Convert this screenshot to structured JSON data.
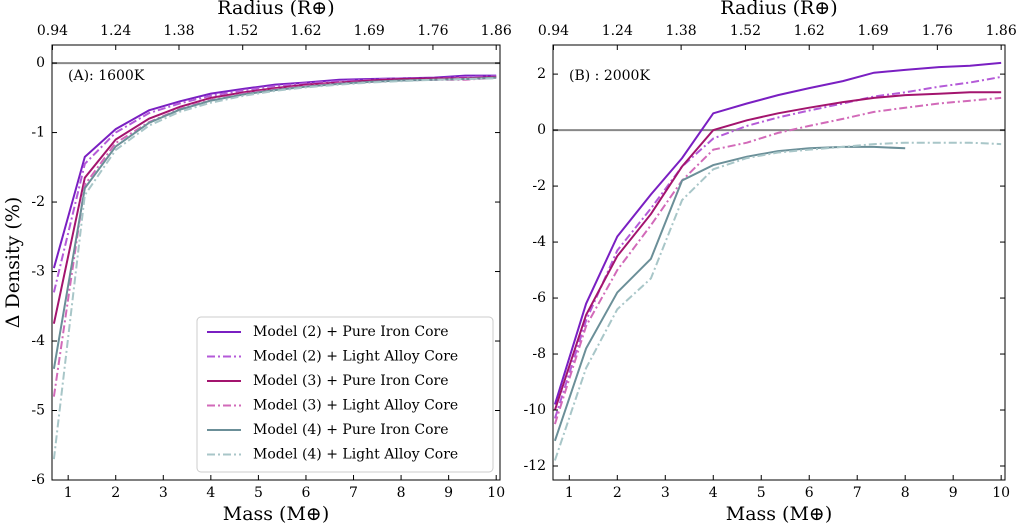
{
  "chart_data": [
    {
      "type": "line",
      "annotation": "(A): 1600K",
      "xlabel": "Mass (M⊕)",
      "ylabel": "Δ Density (%)",
      "x2label": "Radius (R⊕)",
      "xlim": [
        0.66,
        10.08
      ],
      "ylim": [
        -6,
        0.26
      ],
      "xticks": [
        1,
        2,
        3,
        4,
        5,
        6,
        7,
        8,
        9,
        10
      ],
      "yticks": [
        0,
        -1,
        -2,
        -3,
        -4,
        -5,
        -6
      ],
      "x2ticks": [
        {
          "value": 0.67,
          "label": "0.94"
        },
        {
          "value": 2,
          "label": "1.24"
        },
        {
          "value": 3.33,
          "label": "1.38"
        },
        {
          "value": 4.67,
          "label": "1.52"
        },
        {
          "value": 6,
          "label": "1.62"
        },
        {
          "value": 7.33,
          "label": "1.69"
        },
        {
          "value": 8.67,
          "label": "1.76"
        },
        {
          "value": 10,
          "label": "1.86"
        }
      ],
      "hline": 0,
      "hline_color": "#888888",
      "legend": "lower right",
      "x": [
        0.7,
        1.35,
        2,
        2.7,
        3.35,
        4,
        4.7,
        5.35,
        6,
        6.7,
        7.35,
        8,
        8.7,
        9.35,
        10
      ],
      "series": [
        {
          "name": "Model (2) + Pure Iron Core",
          "color": "#7a1fc2",
          "dash": "solid",
          "values": [
            -2.95,
            -1.35,
            -0.95,
            -0.68,
            -0.55,
            -0.44,
            -0.37,
            -0.31,
            -0.28,
            -0.24,
            -0.23,
            -0.22,
            -0.21,
            -0.18,
            -0.18
          ]
        },
        {
          "name": "Model (2) + Light Alloy Core",
          "color": "#b45ad8",
          "dash": "dashdot",
          "values": [
            -3.3,
            -1.45,
            -1.0,
            -0.72,
            -0.58,
            -0.47,
            -0.39,
            -0.33,
            -0.29,
            -0.26,
            -0.24,
            -0.22,
            -0.22,
            -0.2,
            -0.19
          ]
        },
        {
          "name": "Model (3) + Pure Iron Core",
          "color": "#a3146e",
          "dash": "solid",
          "values": [
            -3.75,
            -1.65,
            -1.1,
            -0.8,
            -0.63,
            -0.5,
            -0.42,
            -0.36,
            -0.31,
            -0.28,
            -0.25,
            -0.23,
            -0.22,
            -0.22,
            -0.2
          ]
        },
        {
          "name": "Model (3) + Light Alloy Core",
          "color": "#d26ab9",
          "dash": "dashdot",
          "values": [
            -4.8,
            -1.75,
            -1.15,
            -0.85,
            -0.66,
            -0.53,
            -0.44,
            -0.38,
            -0.33,
            -0.29,
            -0.27,
            -0.25,
            -0.24,
            -0.24,
            -0.21
          ]
        },
        {
          "name": "Model (4) + Pure Iron Core",
          "color": "#6b8f98",
          "dash": "solid",
          "values": [
            -4.4,
            -1.8,
            -1.2,
            -0.86,
            -0.67,
            -0.54,
            -0.45,
            -0.39,
            -0.34,
            -0.3,
            -0.27,
            -0.25,
            -0.24,
            -0.23,
            -0.21
          ]
        },
        {
          "name": "Model (4) + Light Alloy Core",
          "color": "#a8c6c8",
          "dash": "dashdot",
          "values": [
            -5.7,
            -1.9,
            -1.25,
            -0.9,
            -0.7,
            -0.57,
            -0.47,
            -0.4,
            -0.35,
            -0.31,
            -0.28,
            -0.26,
            -0.24,
            -0.23,
            -0.22
          ]
        }
      ]
    },
    {
      "type": "line",
      "annotation": "(B) : 2000K",
      "xlabel": "Mass (M⊕)",
      "x2label": "Radius (R⊕)",
      "xlim": [
        0.66,
        10.08
      ],
      "ylim": [
        -12.5,
        3.04
      ],
      "xticks": [
        1,
        2,
        3,
        4,
        5,
        6,
        7,
        8,
        9,
        10
      ],
      "yticks": [
        2,
        0,
        -2,
        -4,
        -6,
        -8,
        -10,
        -12
      ],
      "x2ticks": [
        {
          "value": 0.67,
          "label": "0.94"
        },
        {
          "value": 2,
          "label": "1.24"
        },
        {
          "value": 3.33,
          "label": "1.38"
        },
        {
          "value": 4.67,
          "label": "1.52"
        },
        {
          "value": 6,
          "label": "1.62"
        },
        {
          "value": 7.33,
          "label": "1.69"
        },
        {
          "value": 8.67,
          "label": "1.76"
        },
        {
          "value": 10,
          "label": "1.86"
        }
      ],
      "hline": 0,
      "hline_color": "#888888",
      "x": [
        0.7,
        1.35,
        2,
        2.7,
        3.35,
        4,
        4.7,
        5.35,
        6,
        6.7,
        7.35,
        8,
        8.7,
        9.35,
        10
      ],
      "series": [
        {
          "color": "#7a1fc2",
          "dash": "solid",
          "values": [
            -9.8,
            -6.2,
            -3.8,
            -2.3,
            -1.0,
            0.6,
            0.95,
            1.25,
            1.5,
            1.75,
            2.05,
            2.15,
            2.25,
            2.3,
            2.4
          ]
        },
        {
          "color": "#b45ad8",
          "dash": "dashdot",
          "values": [
            -10.3,
            -6.8,
            -4.3,
            -2.8,
            -1.3,
            -0.3,
            0.15,
            0.45,
            0.7,
            0.95,
            1.2,
            1.35,
            1.55,
            1.7,
            1.9
          ]
        },
        {
          "color": "#a3146e",
          "dash": "solid",
          "values": [
            -10.0,
            -6.6,
            -4.5,
            -3.0,
            -1.3,
            0.0,
            0.35,
            0.6,
            0.8,
            1.0,
            1.15,
            1.25,
            1.3,
            1.35,
            1.35
          ]
        },
        {
          "color": "#d26ab9",
          "dash": "dashdot",
          "values": [
            -10.5,
            -7.0,
            -5.0,
            -3.4,
            -1.8,
            -0.7,
            -0.45,
            -0.1,
            0.15,
            0.4,
            0.65,
            0.8,
            0.95,
            1.05,
            1.15
          ]
        },
        {
          "color": "#6b8f98",
          "dash": "solid",
          "values": [
            -11.1,
            -7.8,
            -5.8,
            -4.6,
            -1.8,
            -1.25,
            -0.95,
            -0.75,
            -0.65,
            -0.6,
            -0.6,
            -0.65,
            null,
            null,
            null
          ]
        },
        {
          "color": "#a8c6c8",
          "dash": "dashdot",
          "values": [
            -11.8,
            -8.5,
            -6.4,
            -5.3,
            -2.5,
            -1.4,
            -1.0,
            -0.8,
            -0.7,
            -0.6,
            -0.5,
            -0.45,
            -0.45,
            -0.45,
            -0.5
          ]
        }
      ]
    }
  ]
}
